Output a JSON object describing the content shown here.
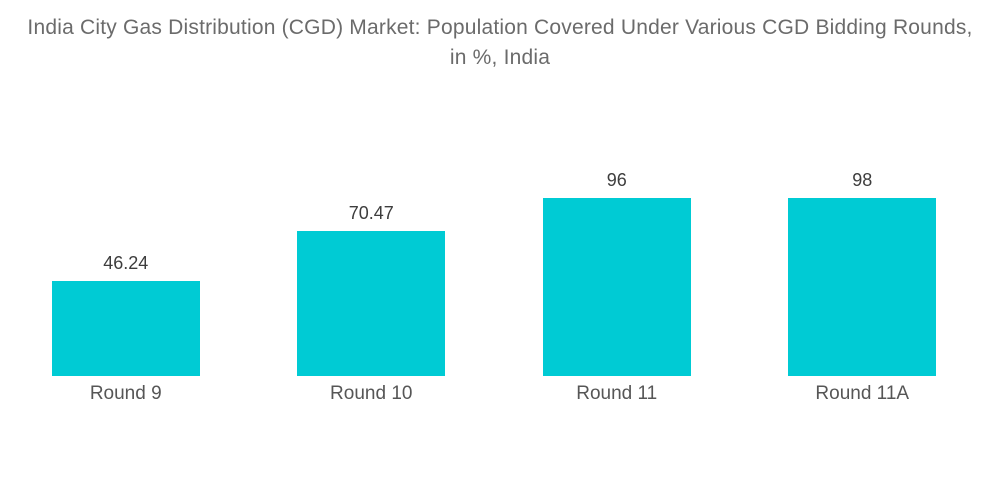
{
  "chart_data": {
    "type": "bar",
    "title": "India City Gas Distribution (CGD) Market: Population Covered Under Various CGD Bidding Rounds, in %, India",
    "categories": [
      "Round 9",
      "Round 10",
      "Round 11",
      "Round 11A"
    ],
    "values": [
      46.24,
      70.47,
      96,
      98
    ],
    "value_labels": [
      "46.24",
      "70.47",
      "96",
      "98"
    ],
    "xlabel": "",
    "ylabel": "",
    "ylim": [
      0,
      100
    ],
    "grid": false,
    "legend": null,
    "data_labels_position": "above-bars",
    "colors": {
      "bar": "#00cbd4",
      "title_text": "#6b6b6b",
      "value_label_text": "#3d3d3d",
      "category_label_text": "#565656",
      "background": "#ffffff"
    }
  }
}
